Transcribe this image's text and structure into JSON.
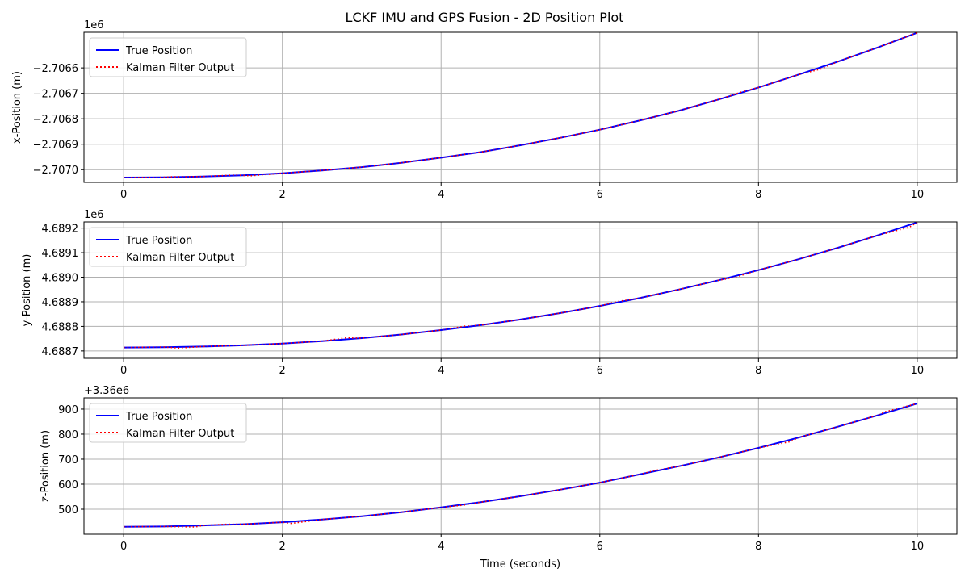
{
  "figure": {
    "title": "LCKF IMU and GPS Fusion  - 2D Position Plot"
  },
  "colors": {
    "true_line": "#0000ff",
    "kf_line": "#ff0000",
    "grid": "#b0b0b0"
  },
  "chart_data": [
    {
      "type": "line",
      "ylabel": "x-Position (m)",
      "offset_text": "1e6",
      "xlim": [
        -0.5,
        10.5
      ],
      "ylim": [
        -2707.05,
        -2706.46
      ],
      "xticks": [
        0,
        2,
        4,
        6,
        8,
        10
      ],
      "xtick_labels": [
        "0",
        "2",
        "4",
        "6",
        "8",
        "10"
      ],
      "yticks": [
        -2707.0,
        -2706.9,
        -2706.8,
        -2706.7,
        -2706.6
      ],
      "ytick_labels": [
        "−2.7070",
        "−2.7069",
        "−2.7068",
        "−2.7067",
        "−2.7066"
      ],
      "legend": [
        "True Position",
        "Kalman Filter Output"
      ],
      "legend_position": "top-left",
      "grid": true,
      "series": [
        {
          "name": "True Position",
          "style": "solid",
          "x": [
            0,
            0.5,
            1,
            1.5,
            2,
            2.5,
            3,
            3.5,
            4,
            4.5,
            5,
            5.5,
            6,
            6.5,
            7,
            7.5,
            8,
            8.5,
            9,
            9.5,
            10
          ],
          "y": [
            -2707.031,
            -2707.03,
            -2707.027,
            -2707.022,
            -2707.014,
            -2707.003,
            -2706.99,
            -2706.973,
            -2706.953,
            -2706.931,
            -2706.904,
            -2706.875,
            -2706.843,
            -2706.807,
            -2706.768,
            -2706.724,
            -2706.677,
            -2706.627,
            -2706.575,
            -2706.52,
            -2706.462
          ]
        },
        {
          "name": "Kalman Filter Output",
          "style": "dotted",
          "x": [
            0,
            0.5,
            0.6,
            1,
            1.4,
            1.6,
            2,
            2.5,
            3,
            3.5,
            4,
            4.5,
            5,
            5.5,
            6,
            6.5,
            7,
            7.5,
            7.8,
            8,
            8.5,
            8.8,
            9,
            9.5,
            10
          ],
          "y": [
            -2707.031,
            -2707.03,
            -2707.028,
            -2707.027,
            -2707.021,
            -2707.024,
            -2707.014,
            -2707.003,
            -2706.99,
            -2706.973,
            -2706.953,
            -2706.931,
            -2706.904,
            -2706.875,
            -2706.843,
            -2706.807,
            -2706.768,
            -2706.724,
            -2706.693,
            -2706.677,
            -2706.627,
            -2706.603,
            -2706.575,
            -2706.52,
            -2706.462
          ]
        }
      ]
    },
    {
      "type": "line",
      "ylabel": "y-Position (m)",
      "offset_text": "1e6",
      "xlim": [
        -0.5,
        10.5
      ],
      "ylim": [
        4688.67,
        4689.225
      ],
      "xticks": [
        0,
        2,
        4,
        6,
        8,
        10
      ],
      "xtick_labels": [
        "0",
        "2",
        "4",
        "6",
        "8",
        "10"
      ],
      "yticks": [
        4688.7,
        4688.8,
        4688.9,
        4689.0,
        4689.1,
        4689.2
      ],
      "ytick_labels": [
        "4.6887",
        "4.6888",
        "4.6889",
        "4.6890",
        "4.6891",
        "4.6892"
      ],
      "legend": [
        "True Position",
        "Kalman Filter Output"
      ],
      "legend_position": "top-left",
      "grid": true,
      "series": [
        {
          "name": "True Position",
          "style": "solid",
          "x": [
            0,
            0.5,
            1,
            1.5,
            2,
            2.5,
            3,
            3.5,
            4,
            4.5,
            5,
            5.5,
            6,
            6.5,
            7,
            7.5,
            8,
            8.5,
            9,
            9.5,
            10
          ],
          "y": [
            4688.714,
            4688.715,
            4688.718,
            4688.723,
            4688.73,
            4688.74,
            4688.752,
            4688.767,
            4688.785,
            4688.805,
            4688.828,
            4688.854,
            4688.883,
            4688.915,
            4688.95,
            4688.988,
            4689.029,
            4689.073,
            4689.12,
            4689.17,
            4689.223
          ]
        },
        {
          "name": "Kalman Filter Output",
          "style": "dotted",
          "x": [
            0,
            0.5,
            0.7,
            1,
            1.5,
            2,
            2.5,
            2.8,
            3,
            3.5,
            4,
            4.3,
            4.5,
            5,
            5.5,
            6,
            6.2,
            6.5,
            7,
            7.5,
            7.7,
            8,
            8.5,
            9,
            9.5,
            9.9,
            10
          ],
          "y": [
            4688.714,
            4688.716,
            4688.712,
            4688.718,
            4688.723,
            4688.73,
            4688.74,
            4688.753,
            4688.752,
            4688.767,
            4688.785,
            4688.801,
            4688.805,
            4688.828,
            4688.854,
            4688.883,
            4688.9,
            4688.915,
            4688.95,
            4688.988,
            4688.999,
            4689.029,
            4689.073,
            4689.12,
            4689.17,
            4689.203,
            4689.223
          ]
        }
      ]
    },
    {
      "type": "line",
      "ylabel": "z-Position (m)",
      "offset_text": "+3.36e6",
      "xlabel": "Time (seconds)",
      "xlim": [
        -0.5,
        10.5
      ],
      "ylim": [
        400,
        945
      ],
      "xticks": [
        0,
        2,
        4,
        6,
        8,
        10
      ],
      "xtick_labels": [
        "0",
        "2",
        "4",
        "6",
        "8",
        "10"
      ],
      "yticks": [
        500,
        600,
        700,
        800,
        900
      ],
      "ytick_labels": [
        "500",
        "600",
        "700",
        "800",
        "900"
      ],
      "legend": [
        "True Position",
        "Kalman Filter Output"
      ],
      "legend_position": "top-left",
      "grid": true,
      "series": [
        {
          "name": "True Position",
          "style": "solid",
          "x": [
            0,
            0.5,
            1,
            1.5,
            2,
            2.5,
            3,
            3.5,
            4,
            4.5,
            5,
            5.5,
            6,
            6.5,
            7,
            7.5,
            8,
            8.5,
            9,
            9.5,
            10
          ],
          "y": [
            430,
            431,
            435,
            440,
            448,
            459,
            472,
            488,
            507,
            528,
            552,
            578,
            606,
            639,
            672,
            707,
            745,
            786,
            830,
            875,
            922
          ]
        },
        {
          "name": "Kalman Filter Output",
          "style": "dotted",
          "x": [
            0,
            0.5,
            0.9,
            1,
            1.3,
            1.5,
            2,
            2.1,
            2.5,
            3,
            3.5,
            4,
            4.3,
            4.5,
            5,
            5.5,
            6,
            6.5,
            6.7,
            7,
            7.5,
            8,
            8.4,
            8.5,
            9,
            9.5,
            9.6,
            10
          ],
          "y": [
            430,
            431,
            429,
            435,
            440,
            440,
            448,
            443,
            459,
            472,
            488,
            507,
            517,
            528,
            552,
            578,
            606,
            639,
            655,
            672,
            707,
            745,
            770,
            786,
            830,
            875,
            890,
            922
          ]
        }
      ]
    }
  ]
}
